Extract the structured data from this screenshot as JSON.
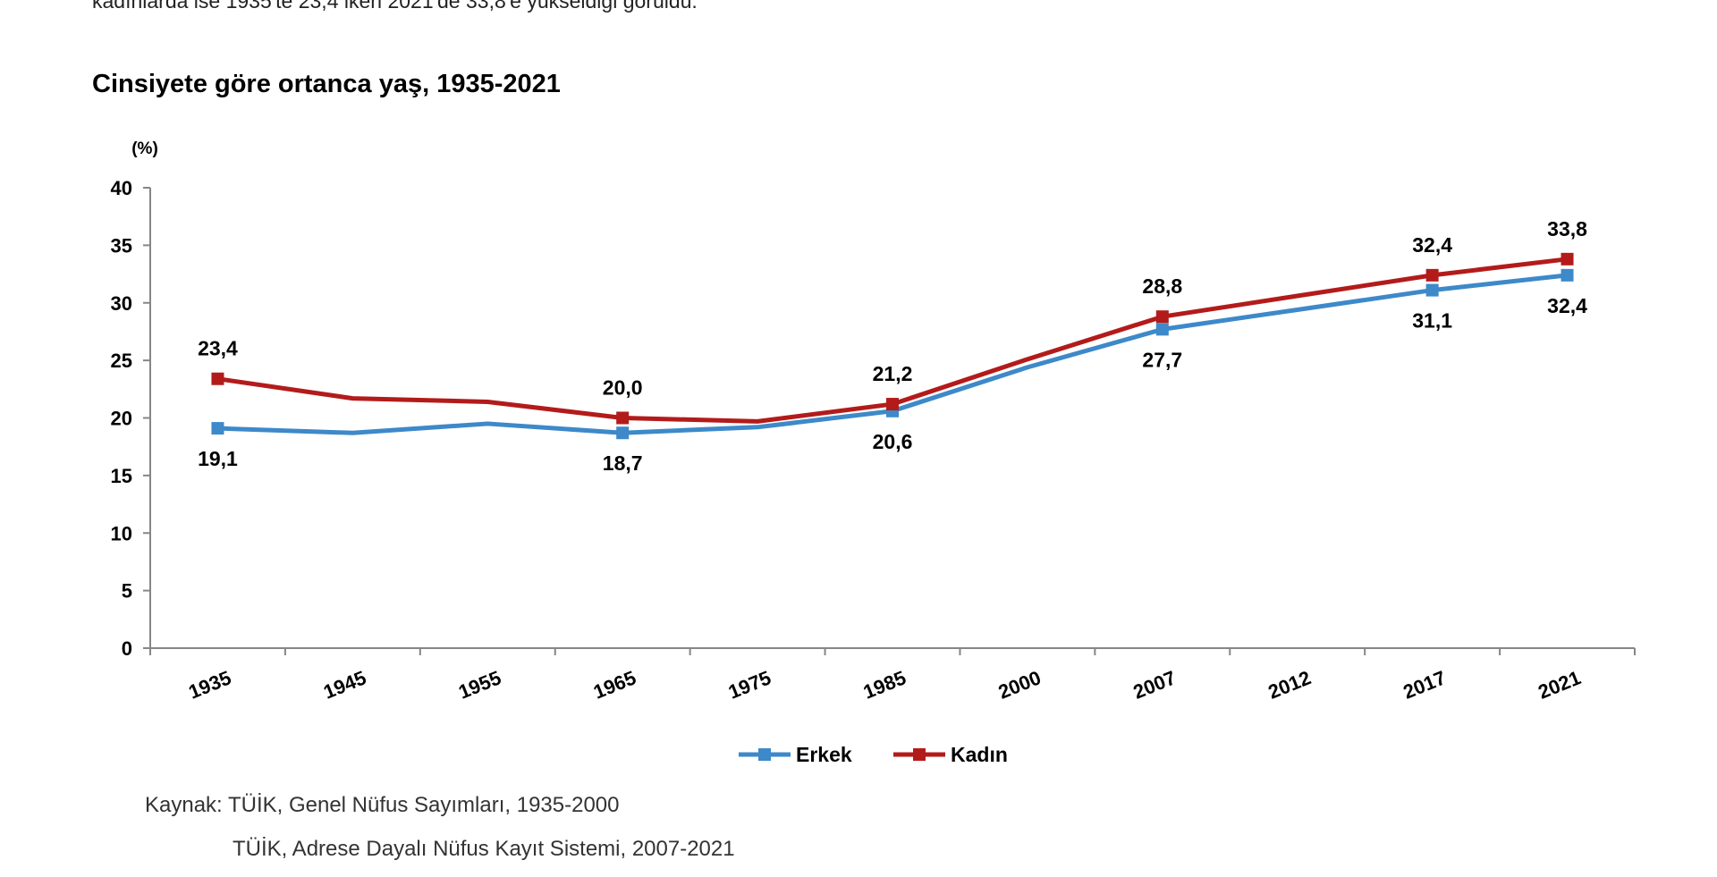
{
  "intro_text": "kadınlarda ise 1935'te 23,4 iken 2021'de 33,8'e yükseldiği görüldü.",
  "chart_data": {
    "type": "line",
    "title": "Cinsiyete göre ortanca yaş, 1935-2021",
    "unit_label": "(%)",
    "ylim": [
      0,
      40
    ],
    "yticks": [
      "0",
      "5",
      "10",
      "15",
      "20",
      "25",
      "30",
      "35",
      "40"
    ],
    "categories": [
      "1935",
      "1945",
      "1955",
      "1965",
      "1975",
      "1985",
      "2000",
      "2007",
      "2012",
      "2017",
      "2021"
    ],
    "series": [
      {
        "name": "Erkek",
        "color": "#3d89c9",
        "values": [
          19.1,
          18.7,
          19.5,
          18.7,
          19.2,
          20.6,
          24.4,
          27.7,
          29.4,
          31.1,
          32.4
        ],
        "labels": [
          "19,1",
          "",
          "",
          "18,7",
          "",
          "20,6",
          "",
          "27,7",
          "",
          "31,1",
          "32,4"
        ]
      },
      {
        "name": "Kadın",
        "color": "#b31b1b",
        "values": [
          23.4,
          21.7,
          21.4,
          20.0,
          19.7,
          21.2,
          25.1,
          28.8,
          30.6,
          32.4,
          33.8
        ],
        "labels": [
          "23,4",
          "",
          "",
          "20,0",
          "",
          "21,2",
          "",
          "28,8",
          "",
          "32,4",
          "33,8"
        ]
      }
    ],
    "legend_position": "bottom"
  },
  "source": {
    "line1": "Kaynak: TÜİK, Genel Nüfus Sayımları, 1935-2000",
    "line2": "TÜİK, Adrese Dayalı Nüfus Kayıt Sistemi, 2007-2021"
  }
}
